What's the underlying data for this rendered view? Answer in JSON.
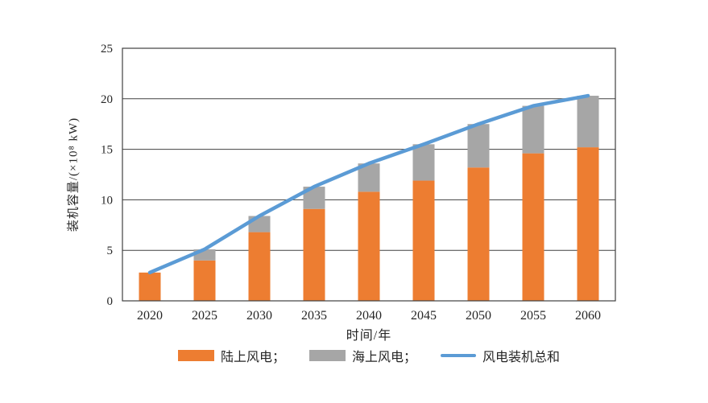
{
  "chart_data": {
    "type": "bar",
    "subtype": "stacked-bar-with-line-overlay",
    "title": "",
    "xlabel": "时间/年",
    "ylabel": "装机容量/(×10⁸ kW)",
    "categories": [
      "2020",
      "2025",
      "2030",
      "2035",
      "2040",
      "2045",
      "2050",
      "2055",
      "2060"
    ],
    "series": [
      {
        "name": "陆上风电",
        "type": "bar",
        "color": "#ED7D31",
        "values": [
          2.8,
          4.0,
          6.8,
          9.1,
          10.8,
          11.9,
          13.2,
          14.6,
          15.2
        ]
      },
      {
        "name": "海上风电",
        "type": "bar",
        "color": "#A6A6A6",
        "values": [
          0.0,
          1.1,
          1.6,
          2.2,
          2.8,
          3.6,
          4.3,
          4.7,
          5.1
        ]
      },
      {
        "name": "风电装机总和",
        "type": "line",
        "color": "#5B9BD5",
        "values": [
          2.8,
          5.1,
          8.4,
          11.3,
          13.6,
          15.5,
          17.5,
          19.3,
          20.3
        ]
      }
    ],
    "ylim": [
      0,
      25
    ],
    "yticks": [
      "0",
      "5",
      "10",
      "15",
      "20",
      "25"
    ],
    "grid": "horizontal",
    "plot_border": true,
    "legend_position": "bottom",
    "legend": [
      {
        "label": "陆上风电；",
        "swatch": "bar",
        "color": "#ED7D31"
      },
      {
        "label": "海上风电；",
        "swatch": "bar",
        "color": "#A6A6A6"
      },
      {
        "label": "风电装机总和",
        "swatch": "line",
        "color": "#5B9BD5"
      }
    ],
    "axis_color": "#404040",
    "tick_label_color": "#262626"
  }
}
